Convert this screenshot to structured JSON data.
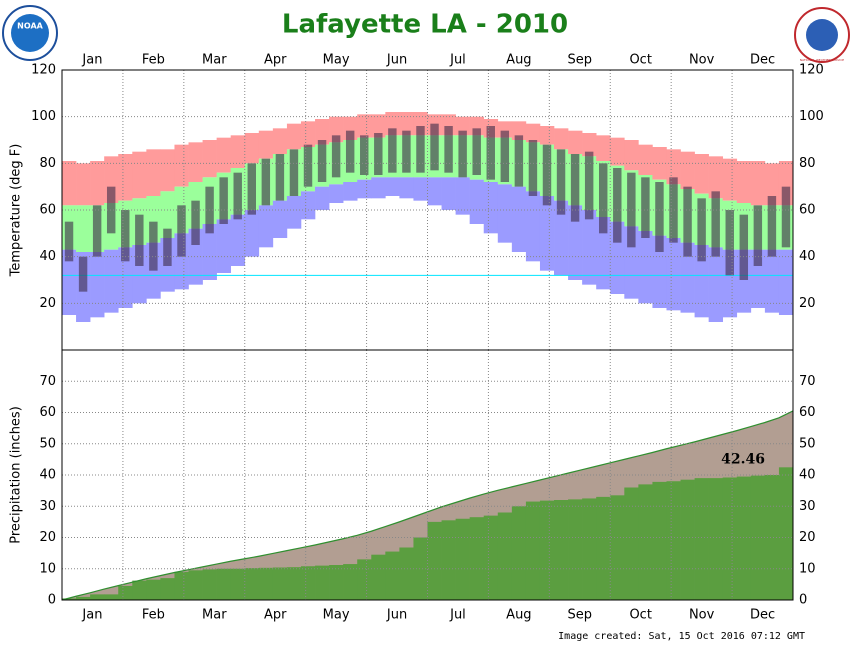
{
  "header": {
    "title": "Lafayette LA - 2010",
    "footer": "Image created: Sat, 15 Oct 2016 07:12 GMT",
    "logos": [
      "NOAA",
      "NATIONAL WEATHER SERVICE"
    ]
  },
  "chart_data": [
    {
      "type": "range",
      "ylabel": "Temperature (deg F)",
      "categories": [
        "Jan",
        "Feb",
        "Mar",
        "Apr",
        "May",
        "Jun",
        "Jul",
        "Aug",
        "Sep",
        "Oct",
        "Nov",
        "Dec"
      ],
      "ylim": [
        0,
        120
      ],
      "yticks": [
        20,
        40,
        60,
        80,
        100,
        120
      ],
      "grid": true,
      "record_high": {
        "color": "#ff9b9b",
        "values": [
          81,
          80,
          81,
          83,
          84,
          85,
          86,
          86,
          88,
          89,
          90,
          91,
          92,
          93,
          94,
          95,
          97,
          98,
          99,
          100,
          100,
          101,
          101,
          102,
          102,
          102,
          101,
          101,
          100,
          100,
          99,
          98,
          98,
          97,
          96,
          95,
          94,
          93,
          92,
          91,
          90,
          88,
          87,
          86,
          85,
          84,
          83,
          82,
          81,
          81,
          80,
          81
        ]
      },
      "normal_high": {
        "color": "#9bff9b",
        "values": [
          62,
          62,
          62,
          63,
          64,
          65,
          66,
          68,
          70,
          72,
          74,
          76,
          78,
          80,
          82,
          84,
          86,
          87,
          88,
          89,
          90,
          91,
          91,
          92,
          92,
          92,
          92,
          92,
          92,
          92,
          91,
          91,
          90,
          89,
          88,
          86,
          84,
          83,
          81,
          79,
          77,
          75,
          73,
          71,
          69,
          67,
          65,
          64,
          63,
          62,
          62,
          62
        ]
      },
      "normal_low": {
        "color": "#9b9bff",
        "values": [
          43,
          42,
          42,
          43,
          44,
          45,
          46,
          48,
          50,
          52,
          54,
          56,
          58,
          60,
          62,
          64,
          66,
          68,
          70,
          71,
          72,
          73,
          74,
          74,
          74,
          74,
          74,
          74,
          74,
          73,
          72,
          71,
          70,
          68,
          66,
          64,
          62,
          60,
          57,
          55,
          53,
          51,
          49,
          48,
          46,
          45,
          44,
          43,
          43,
          43,
          43,
          43
        ]
      },
      "record_low": {
        "values": [
          15,
          12,
          14,
          16,
          18,
          20,
          22,
          25,
          26,
          28,
          30,
          33,
          36,
          40,
          44,
          48,
          52,
          56,
          60,
          63,
          64,
          65,
          65,
          66,
          65,
          64,
          62,
          60,
          58,
          54,
          50,
          46,
          42,
          38,
          34,
          32,
          30,
          28,
          26,
          24,
          22,
          20,
          18,
          17,
          16,
          14,
          12,
          14,
          16,
          18,
          16,
          15
        ]
      },
      "actual_high": {
        "color": "#3c2c48",
        "values": [
          55,
          40,
          62,
          70,
          60,
          58,
          55,
          52,
          62,
          64,
          70,
          74,
          76,
          80,
          82,
          84,
          86,
          88,
          90,
          92,
          94,
          92,
          93,
          95,
          94,
          96,
          97,
          96,
          94,
          95,
          96,
          94,
          92,
          90,
          88,
          86,
          84,
          85,
          80,
          78,
          76,
          74,
          72,
          74,
          70,
          65,
          68,
          60,
          58,
          62,
          66,
          70
        ]
      },
      "actual_low": {
        "values": [
          38,
          25,
          40,
          50,
          38,
          36,
          34,
          36,
          40,
          45,
          50,
          54,
          56,
          58,
          62,
          64,
          66,
          70,
          72,
          74,
          76,
          75,
          75,
          76,
          76,
          76,
          77,
          76,
          74,
          75,
          73,
          72,
          70,
          66,
          62,
          58,
          55,
          56,
          50,
          46,
          44,
          48,
          42,
          46,
          40,
          38,
          40,
          32,
          30,
          36,
          40,
          44
        ]
      },
      "freeze_line": {
        "value": 32,
        "color": "#00e5ff"
      }
    },
    {
      "type": "area",
      "ylabel": "Precipitation (inches)",
      "categories": [
        "Jan",
        "Feb",
        "Mar",
        "Apr",
        "May",
        "Jun",
        "Jul",
        "Aug",
        "Sep",
        "Oct",
        "Nov",
        "Dec"
      ],
      "ylim": [
        0,
        80
      ],
      "yticks": [
        0,
        10,
        20,
        30,
        40,
        50,
        60,
        70
      ],
      "grid": true,
      "normal": {
        "color": "#b29e92",
        "line_color": "#2f8f2f",
        "values": [
          1.2,
          2.3,
          3.5,
          4.6,
          5.7,
          6.8,
          7.8,
          8.8,
          9.7,
          10.6,
          11.5,
          12.4,
          13.2,
          14.0,
          14.9,
          15.8,
          16.7,
          17.6,
          18.6,
          19.6,
          20.7,
          22.0,
          23.5,
          25.0,
          26.6,
          28.2,
          29.8,
          31.2,
          32.6,
          33.9,
          35.1,
          36.2,
          37.3,
          38.4,
          39.5,
          40.6,
          41.7,
          42.8,
          43.9,
          45.0,
          46.1,
          47.2,
          48.4,
          49.5,
          50.6,
          51.8,
          53.0,
          54.2,
          55.5,
          56.8,
          58.3,
          60.5
        ]
      },
      "actual": {
        "color": "#5b9e40",
        "values": [
          0.5,
          1.0,
          1.8,
          1.8,
          4.5,
          6.2,
          6.5,
          7.0,
          9.0,
          9.5,
          9.8,
          10.0,
          10.0,
          10.2,
          10.3,
          10.4,
          10.5,
          10.8,
          11.0,
          11.2,
          11.5,
          13.0,
          14.5,
          15.5,
          16.8,
          20.0,
          25.0,
          25.5,
          26.0,
          26.5,
          27.0,
          28.0,
          30.0,
          31.5,
          31.8,
          32.0,
          32.2,
          32.5,
          33.0,
          33.5,
          36.0,
          37.0,
          37.8,
          38.0,
          38.5,
          39.0,
          39.0,
          39.2,
          39.5,
          39.8,
          40.0,
          42.46
        ]
      }
    }
  ]
}
